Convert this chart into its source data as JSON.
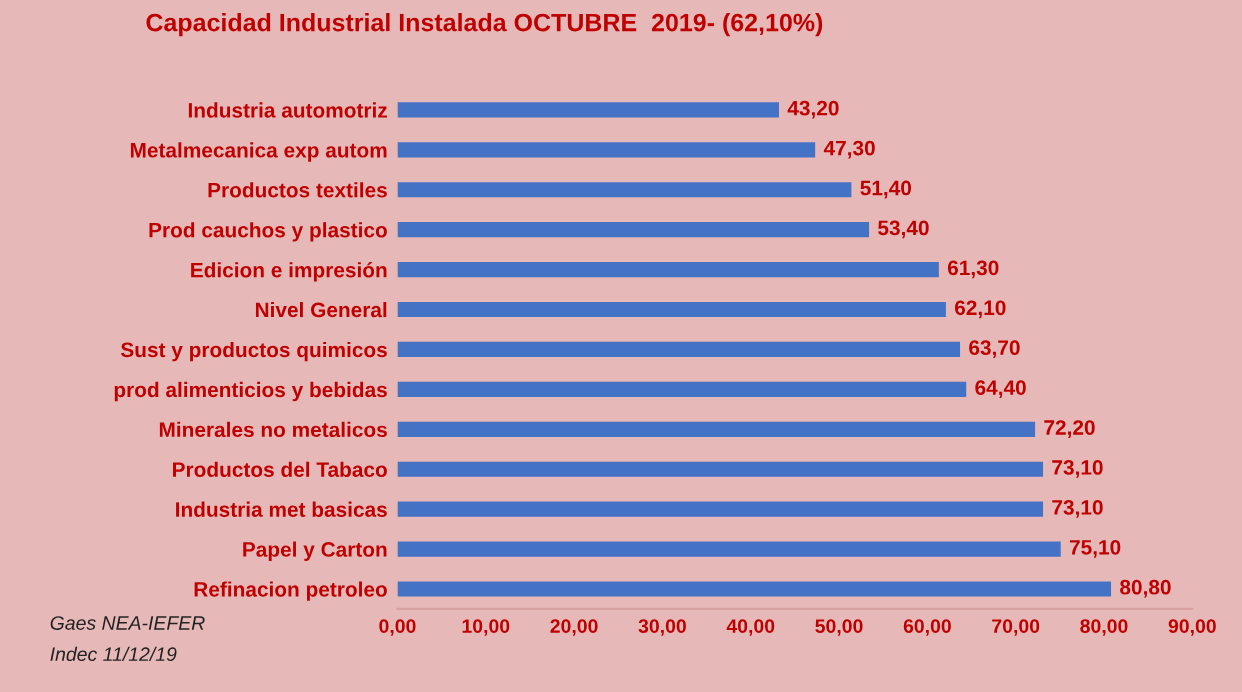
{
  "chart_data": {
    "type": "bar",
    "orientation": "horizontal",
    "title": "Capacidad Industrial Instalada OCTUBRE  2019- (62,10%)",
    "categories": [
      "Industria automotriz",
      "Metalmecanica exp autom",
      "Productos textiles",
      "Prod cauchos y plastico",
      "Edicion e impresión",
      "Nivel General",
      "Sust y productos quimicos",
      "prod alimenticios y bebidas",
      "Minerales no metalicos",
      "Productos del Tabaco",
      "Industria met basicas",
      "Papel y Carton",
      "Refinacion petroleo"
    ],
    "values": [
      43.2,
      47.3,
      51.4,
      53.4,
      61.3,
      62.1,
      63.7,
      64.4,
      72.2,
      73.1,
      73.1,
      75.1,
      80.8
    ],
    "value_labels": [
      "43,20",
      "47,30",
      "51,40",
      "53,40",
      "61,30",
      "62,10",
      "63,70",
      "64,40",
      "72,20",
      "73,10",
      "73,10",
      "75,10",
      "80,80"
    ],
    "color": "#4472c4",
    "xlim": [
      0,
      90
    ],
    "xticks": [
      {
        "value": 0,
        "label": "0,00"
      },
      {
        "value": 10,
        "label": "10,00"
      },
      {
        "value": 20,
        "label": "20,00"
      },
      {
        "value": 30,
        "label": "30,00"
      },
      {
        "value": 40,
        "label": "40,00"
      },
      {
        "value": 50,
        "label": "50,00"
      },
      {
        "value": 60,
        "label": "60,00"
      },
      {
        "value": 70,
        "label": "70,00"
      },
      {
        "value": 80,
        "label": "80,00"
      },
      {
        "value": 90,
        "label": "90,00"
      }
    ],
    "grid": false,
    "annotations": [
      "Gaes NEA-IEFER",
      "Indec 11/12/19"
    ]
  }
}
